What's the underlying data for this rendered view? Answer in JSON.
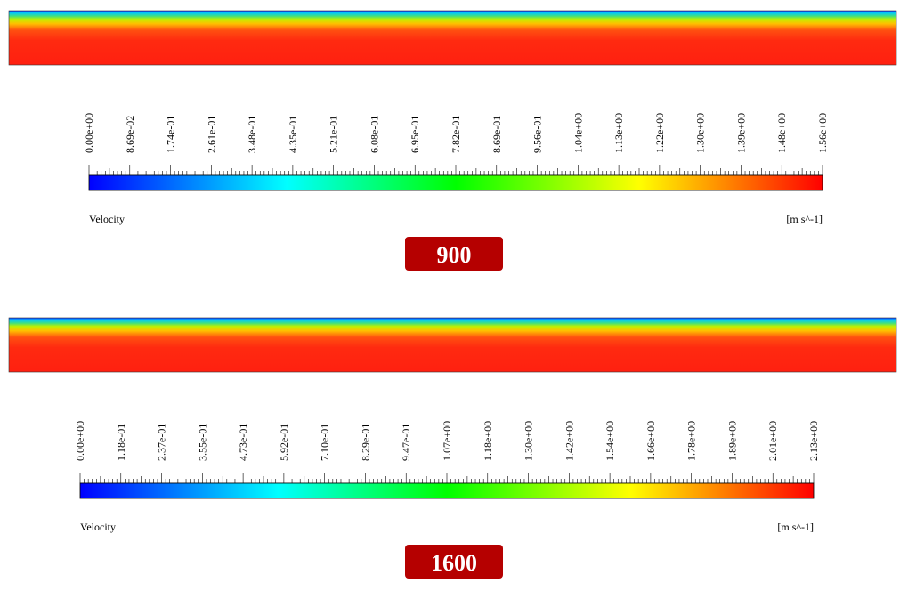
{
  "panels": [
    {
      "variable": "Velocity",
      "unit": "[m s^-1]",
      "label": "900",
      "ticks": [
        "0.00e+00",
        "8.69e-02",
        "1.74e-01",
        "2.61e-01",
        "3.48e-01",
        "4.35e-01",
        "5.21e-01",
        "6.08e-01",
        "6.95e-01",
        "7.82e-01",
        "8.69e-01",
        "9.56e-01",
        "1.04e+00",
        "1.13e+00",
        "1.22e+00",
        "1.30e+00",
        "1.39e+00",
        "1.48e+00",
        "1.56e+00"
      ]
    },
    {
      "variable": "Velocity",
      "unit": "[m s^-1]",
      "label": "1600",
      "ticks": [
        "0.00e+00",
        "1.18e-01",
        "2.37e-01",
        "3.55e-01",
        "4.73e-01",
        "5.92e-01",
        "7.10e-01",
        "8.29e-01",
        "9.47e-01",
        "1.07e+00",
        "1.18e+00",
        "1.30e+00",
        "1.42e+00",
        "1.54e+00",
        "1.66e+00",
        "1.78e+00",
        "1.89e+00",
        "2.01e+00",
        "2.13e+00"
      ]
    }
  ]
}
